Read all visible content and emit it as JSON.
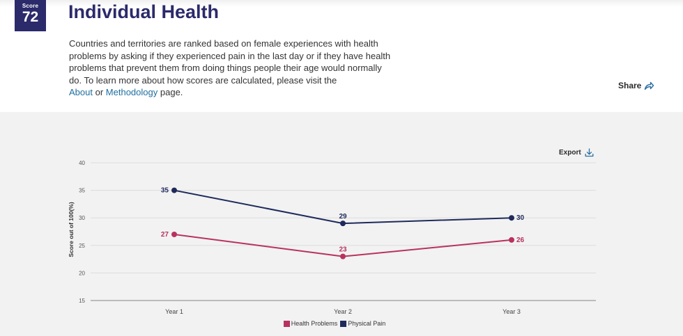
{
  "header": {
    "score_label": "Score",
    "score_value": "72",
    "title": "Individual Health",
    "description_text": "Countries and territories are ranked based on female experiences with health problems by asking if they experienced pain in the last day or if they have health problems that prevent them from doing things people their age would normally do. To learn more about how scores are calculated, please visit the",
    "about_link": "About",
    "or_text": "or",
    "methodology_link": "Methodology",
    "page_text": "page.",
    "share_label": "Share"
  },
  "toolbar": {
    "export_label": "Export"
  },
  "colors": {
    "navy": "#2b2a6b",
    "health_problems": "#b8325d",
    "physical_pain": "#1f2a5c"
  },
  "chart_data": {
    "type": "line",
    "title": "",
    "xlabel": "",
    "ylabel": "Score out of 100(%)",
    "categories": [
      "Year 1",
      "Year 2",
      "Year 3"
    ],
    "ylim": [
      15,
      40
    ],
    "yticks": [
      15,
      20,
      25,
      30,
      35,
      40
    ],
    "grid": true,
    "legend_position": "bottom",
    "series": [
      {
        "name": "Health Problems",
        "color": "#b8325d",
        "values": [
          27,
          23,
          26
        ]
      },
      {
        "name": "Physical Pain",
        "color": "#1f2a5c",
        "values": [
          35,
          29,
          30
        ]
      }
    ]
  }
}
